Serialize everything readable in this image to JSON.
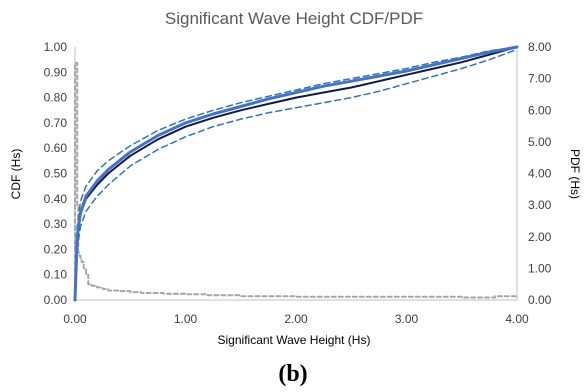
{
  "chart_data": {
    "type": "line",
    "title": "Significant Wave Height CDF/PDF",
    "xlabel": "Significant Wave Height (Hs)",
    "ylabel_left": "CDF (Hs)",
    "ylabel_right": "PDF (Hs)",
    "caption": "(b)",
    "xlim": [
      0,
      4
    ],
    "ylim_left": [
      0,
      1
    ],
    "ylim_right": [
      0,
      8
    ],
    "x_ticks": [
      "0.00",
      "1.00",
      "2.00",
      "3.00",
      "4.00"
    ],
    "y_left_ticks": [
      "0.00",
      "0.10",
      "0.20",
      "0.30",
      "0.40",
      "0.50",
      "0.60",
      "0.70",
      "0.80",
      "0.90",
      "1.00"
    ],
    "y_right_ticks": [
      "0.00",
      "1.00",
      "2.00",
      "3.00",
      "4.00",
      "5.00",
      "6.00",
      "7.00",
      "8.00"
    ],
    "grid": false,
    "legend": "none",
    "colors": {
      "cdf_empirical": "#0d1a4a",
      "cdf_fitted": "#4472c4",
      "cdf_bounds": "#2e75b6",
      "pdf": "#a6a6a6",
      "axis": "#bfbfbf"
    },
    "series": [
      {
        "axis": "left",
        "style": "solid-dark",
        "x": [
          0,
          0.02,
          0.05,
          0.1,
          0.2,
          0.3,
          0.5,
          0.75,
          1.0,
          1.25,
          1.5,
          1.75,
          2.0,
          2.25,
          2.5,
          2.75,
          3.0,
          3.25,
          3.5,
          3.75,
          4.0
        ],
        "y": [
          0,
          0.24,
          0.34,
          0.4,
          0.455,
          0.5,
          0.57,
          0.635,
          0.685,
          0.72,
          0.75,
          0.775,
          0.8,
          0.82,
          0.84,
          0.865,
          0.89,
          0.915,
          0.94,
          0.97,
          1.0
        ]
      },
      {
        "axis": "left",
        "style": "solid-blue",
        "x": [
          0,
          0.02,
          0.05,
          0.1,
          0.2,
          0.3,
          0.5,
          0.75,
          1.0,
          1.25,
          1.5,
          1.75,
          2.0,
          2.25,
          2.5,
          2.75,
          3.0,
          3.25,
          3.5,
          3.75,
          4.0
        ],
        "y": [
          0,
          0.25,
          0.345,
          0.41,
          0.47,
          0.515,
          0.585,
          0.65,
          0.7,
          0.735,
          0.765,
          0.795,
          0.82,
          0.845,
          0.865,
          0.885,
          0.905,
          0.93,
          0.955,
          0.98,
          1.0
        ]
      },
      {
        "axis": "left",
        "style": "dashed-upper",
        "x": [
          0,
          0.02,
          0.05,
          0.1,
          0.2,
          0.3,
          0.5,
          0.75,
          1.0,
          1.25,
          1.5,
          1.75,
          2.0,
          2.25,
          2.5,
          2.75,
          3.0,
          3.25,
          3.5,
          3.75,
          4.0
        ],
        "y": [
          0,
          0.29,
          0.39,
          0.45,
          0.51,
          0.55,
          0.61,
          0.67,
          0.715,
          0.75,
          0.78,
          0.805,
          0.83,
          0.855,
          0.875,
          0.895,
          0.915,
          0.94,
          0.96,
          0.985,
          1.0
        ]
      },
      {
        "axis": "left",
        "style": "dashed-lower",
        "x": [
          0,
          0.02,
          0.05,
          0.1,
          0.2,
          0.3,
          0.5,
          0.75,
          1.0,
          1.25,
          1.5,
          1.75,
          2.0,
          2.25,
          2.5,
          2.75,
          3.0,
          3.25,
          3.5,
          3.75,
          4.0
        ],
        "y": [
          0,
          0.2,
          0.29,
          0.35,
          0.41,
          0.455,
          0.53,
          0.595,
          0.645,
          0.685,
          0.715,
          0.74,
          0.76,
          0.78,
          0.8,
          0.825,
          0.855,
          0.885,
          0.915,
          0.95,
          0.99
        ]
      },
      {
        "axis": "right",
        "style": "dashed-step-gray",
        "x": [
          0,
          0.01,
          0.02,
          0.03,
          0.04,
          0.05,
          0.06,
          0.08,
          0.1,
          0.12,
          0.15,
          0.2,
          0.25,
          0.3,
          0.4,
          0.5,
          0.6,
          0.8,
          1.0,
          1.2,
          1.5,
          2.0,
          2.5,
          3.0,
          3.5,
          3.8,
          4.0
        ],
        "y": [
          7.5,
          7.5,
          3.0,
          1.5,
          1.4,
          1.3,
          1.2,
          1.0,
          0.8,
          0.5,
          0.45,
          0.4,
          0.35,
          0.3,
          0.28,
          0.25,
          0.22,
          0.2,
          0.18,
          0.15,
          0.12,
          0.1,
          0.1,
          0.1,
          0.08,
          0.12,
          0.08
        ]
      }
    ]
  }
}
